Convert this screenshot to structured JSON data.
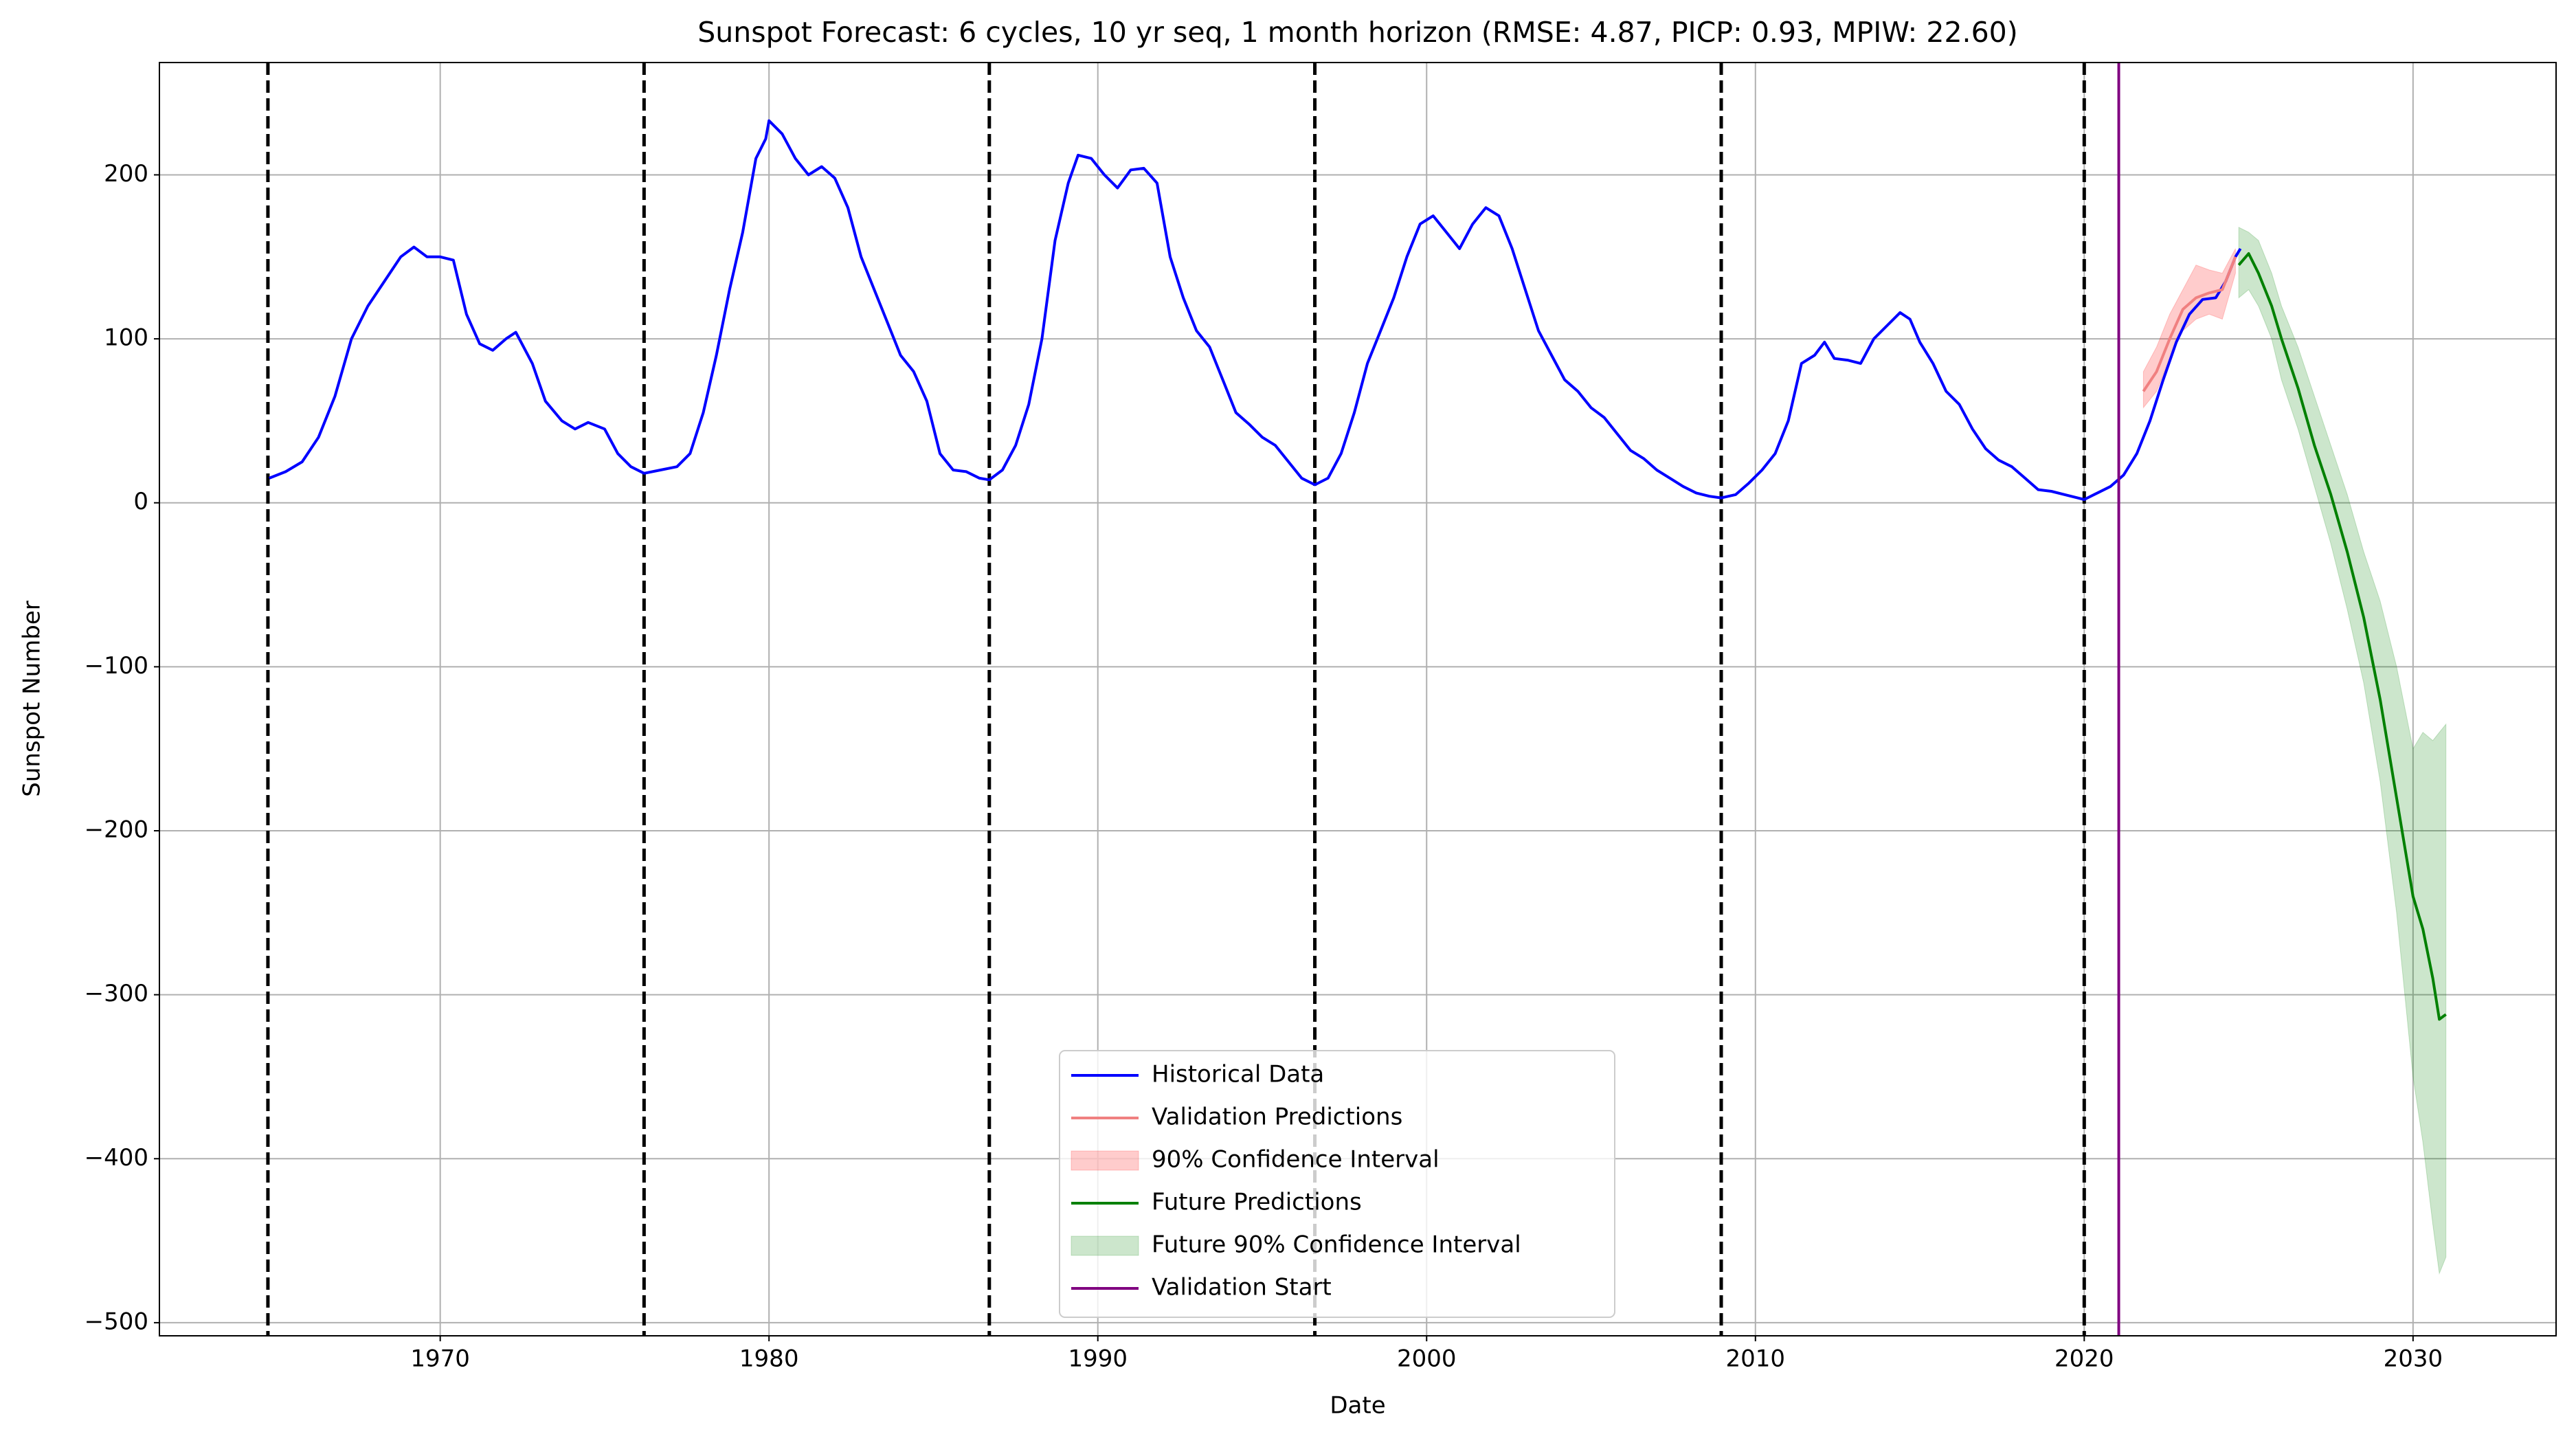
{
  "chart_data": {
    "type": "line",
    "title": "Sunspot Forecast: 6 cycles, 10 yr seq, 1 month horizon (RMSE: 4.87, PICP: 0.93, MPIW: 22.60)",
    "xlabel": "Date",
    "ylabel": "Sunspot Number",
    "xlim": [
      1961.46,
      2034.35
    ],
    "ylim": [
      -508,
      268.5
    ],
    "xticks": [
      1970,
      1980,
      1990,
      2000,
      2010,
      2020,
      2030
    ],
    "yticks": [
      {
        "value": -500,
        "label": "−500"
      },
      {
        "value": -400,
        "label": "−400"
      },
      {
        "value": -300,
        "label": "−300"
      },
      {
        "value": -200,
        "label": "−200"
      },
      {
        "value": -100,
        "label": "−100"
      },
      0,
      100,
      200
    ],
    "grid": true,
    "legend": "lower center",
    "cycle_boundaries": {
      "color": "#000000",
      "x": [
        1964.76,
        1976.2,
        1986.7,
        1996.6,
        2008.96,
        2020.0
      ]
    },
    "series": [
      {
        "name": "Historical Data",
        "kind": "line",
        "color": "#0000ff",
        "x": [
          1964.8,
          1965.3,
          1965.8,
          1966.3,
          1966.8,
          1967.3,
          1967.8,
          1968.3,
          1968.8,
          1969.2,
          1969.6,
          1970.0,
          1970.4,
          1970.8,
          1971.2,
          1971.6,
          1972.0,
          1972.3,
          1972.8,
          1973.2,
          1973.7,
          1974.1,
          1974.5,
          1975.0,
          1975.4,
          1975.8,
          1976.2,
          1976.7,
          1977.2,
          1977.6,
          1978.0,
          1978.4,
          1978.8,
          1979.2,
          1979.6,
          1979.9,
          1980.0,
          1980.4,
          1980.8,
          1981.2,
          1981.6,
          1982.0,
          1982.4,
          1982.8,
          1983.2,
          1983.6,
          1984.0,
          1984.4,
          1984.8,
          1985.2,
          1985.6,
          1986.0,
          1986.4,
          1986.7,
          1987.1,
          1987.5,
          1987.9,
          1988.3,
          1988.7,
          1989.1,
          1989.4,
          1989.8,
          1990.2,
          1990.6,
          1991.0,
          1991.4,
          1991.8,
          1992.2,
          1992.6,
          1993.0,
          1993.4,
          1993.8,
          1994.2,
          1994.6,
          1995.0,
          1995.4,
          1995.8,
          1996.2,
          1996.6,
          1997.0,
          1997.4,
          1997.8,
          1998.2,
          1998.6,
          1999.0,
          1999.4,
          1999.8,
          2000.2,
          2000.6,
          2001.0,
          2001.4,
          2001.8,
          2002.2,
          2002.6,
          2003.0,
          2003.4,
          2003.8,
          2004.2,
          2004.6,
          2005.0,
          2005.4,
          2005.8,
          2006.2,
          2006.6,
          2007.0,
          2007.4,
          2007.8,
          2008.2,
          2008.6,
          2008.96,
          2009.4,
          2009.8,
          2010.2,
          2010.6,
          2011.0,
          2011.4,
          2011.8,
          2012.1,
          2012.4,
          2012.8,
          2013.2,
          2013.6,
          2014.0,
          2014.4,
          2014.7,
          2015.0,
          2015.4,
          2015.8,
          2016.2,
          2016.6,
          2017.0,
          2017.4,
          2017.8,
          2018.2,
          2018.6,
          2019.0,
          2019.4,
          2019.8,
          2020.0,
          2020.4,
          2020.8,
          2021.2,
          2021.6,
          2022.0,
          2022.4,
          2022.8,
          2023.2,
          2023.6,
          2024.0,
          2024.3,
          2024.6,
          2024.75
        ],
        "values": [
          15,
          19,
          25,
          40,
          65,
          100,
          120,
          135,
          150,
          156,
          150,
          150,
          148,
          115,
          97,
          93,
          100,
          104,
          85,
          62,
          50,
          45,
          49,
          45,
          30,
          22,
          18,
          20,
          22,
          30,
          55,
          90,
          130,
          165,
          210,
          222,
          233,
          225,
          210,
          200,
          205,
          198,
          180,
          150,
          130,
          110,
          90,
          80,
          62,
          30,
          20,
          19,
          15,
          14,
          20,
          35,
          60,
          100,
          160,
          195,
          212,
          210,
          200,
          192,
          203,
          204,
          195,
          150,
          125,
          105,
          95,
          75,
          55,
          48,
          40,
          35,
          25,
          15,
          11,
          15,
          30,
          55,
          85,
          105,
          125,
          150,
          170,
          175,
          165,
          155,
          170,
          180,
          175,
          155,
          130,
          105,
          90,
          75,
          68,
          58,
          52,
          42,
          32,
          27,
          20,
          15,
          10,
          6,
          4,
          3,
          5,
          12,
          20,
          30,
          50,
          85,
          90,
          98,
          88,
          87,
          85,
          100,
          108,
          116,
          112,
          98,
          85,
          68,
          60,
          45,
          33,
          26,
          22,
          15,
          8,
          7,
          5,
          3,
          2,
          6,
          10,
          17,
          30,
          50,
          75,
          98,
          115,
          124,
          125,
          135,
          150,
          155
        ]
      },
      {
        "name": "Validation Predictions",
        "kind": "line",
        "color": "#f08080",
        "x": [
          2021.8,
          2022.2,
          2022.6,
          2023.0,
          2023.4,
          2023.8,
          2024.2,
          2024.6
        ],
        "values": [
          68,
          80,
          100,
          118,
          125,
          128,
          130,
          150
        ]
      },
      {
        "name": "90% Confidence Interval",
        "kind": "band",
        "color": "#ff0000",
        "alpha": 0.2,
        "x": [
          2021.8,
          2022.2,
          2022.6,
          2023.0,
          2023.4,
          2023.8,
          2024.2,
          2024.6
        ],
        "upper": [
          80,
          95,
          115,
          130,
          145,
          142,
          140,
          155
        ],
        "lower": [
          58,
          68,
          88,
          105,
          112,
          115,
          112,
          140
        ]
      },
      {
        "name": "Future Predictions",
        "kind": "line",
        "color": "#008000",
        "x": [
          2024.7,
          2025.0,
          2025.3,
          2025.7,
          2026.0,
          2026.5,
          2027.0,
          2027.5,
          2028.0,
          2028.5,
          2029.0,
          2029.5,
          2030.0,
          2030.3,
          2030.6,
          2030.8,
          2031.0
        ],
        "values": [
          145,
          152,
          140,
          120,
          100,
          70,
          35,
          5,
          -30,
          -70,
          -120,
          -180,
          -240,
          -260,
          -290,
          -315,
          -312
        ]
      },
      {
        "name": "Future 90% Confidence Interval",
        "kind": "band",
        "color": "#008000",
        "alpha": 0.2,
        "x": [
          2024.7,
          2025.0,
          2025.3,
          2025.7,
          2026.0,
          2026.5,
          2027.0,
          2027.5,
          2028.0,
          2028.5,
          2029.0,
          2029.5,
          2030.0,
          2030.3,
          2030.6,
          2030.8,
          2031.0
        ],
        "upper": [
          168,
          165,
          160,
          140,
          120,
          95,
          65,
          35,
          5,
          -30,
          -60,
          -100,
          -150,
          -140,
          -145,
          -140,
          -135
        ],
        "lower": [
          125,
          130,
          120,
          100,
          75,
          45,
          10,
          -25,
          -65,
          -110,
          -170,
          -250,
          -350,
          -390,
          -440,
          -470,
          -460
        ]
      },
      {
        "name": "Validation Start",
        "kind": "vline",
        "color": "#800080",
        "x": 2021.05
      }
    ]
  }
}
